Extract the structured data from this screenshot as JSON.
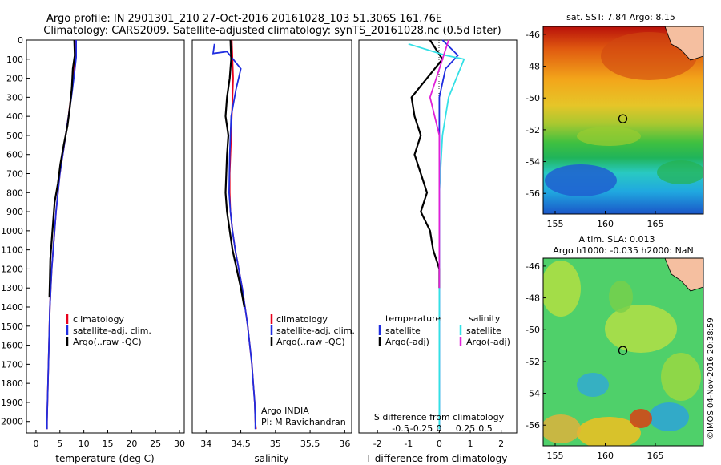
{
  "title_line1": "Argo profile: IN 2901301_210 27-Oct-2016 20161028_103 51.306S 161.76E",
  "title_line2": "Climatology: CARS2009. Satellite-adjusted climatology: synTS_20161028.nc (0.5d later)",
  "credit": "©IMOS 04-Nov-2016 20:38:59",
  "colors": {
    "climatology": "#e8001c",
    "satellite": "#1f2de0",
    "argo": "#000000",
    "sal_sat": "#33e0e6",
    "sal_argo": "#e020d8",
    "land": "#f5bfa0"
  },
  "chart_data": [
    {
      "type": "line",
      "xlabel": "temperature (deg C)",
      "ylabel": "",
      "xlim": [
        -2,
        31
      ],
      "ylim": [
        2060,
        0
      ],
      "x_ticks": [
        0,
        5,
        10,
        15,
        20,
        25,
        30
      ],
      "y_ticks": [
        0,
        100,
        200,
        300,
        400,
        500,
        600,
        700,
        800,
        900,
        1000,
        1100,
        1200,
        1300,
        1400,
        1500,
        1600,
        1700,
        1800,
        1900,
        2000
      ],
      "legend": [
        "climatology",
        "satellite-adj. clim.",
        "Argo(..raw -QC)"
      ],
      "series": [
        {
          "name": "climatology",
          "color": "#e8001c",
          "points": [
            [
              8.3,
              0
            ],
            [
              8.2,
              100
            ],
            [
              7.8,
              200
            ],
            [
              7.3,
              300
            ],
            [
              6.8,
              400
            ],
            [
              6.2,
              500
            ],
            [
              5.6,
              600
            ],
            [
              5.0,
              700
            ],
            [
              4.6,
              800
            ],
            [
              4.2,
              900
            ],
            [
              3.9,
              1000
            ],
            [
              3.6,
              1100
            ],
            [
              3.3,
              1200
            ],
            [
              3.1,
              1300
            ],
            [
              2.9,
              1400
            ],
            [
              2.8,
              1500
            ],
            [
              2.7,
              1600
            ],
            [
              2.6,
              1700
            ],
            [
              2.5,
              1800
            ],
            [
              2.4,
              1900
            ],
            [
              2.3,
              2000
            ],
            [
              2.3,
              2040
            ]
          ]
        },
        {
          "name": "satellite-adj. clim.",
          "color": "#1f2de0",
          "points": [
            [
              8.4,
              0
            ],
            [
              8.4,
              90
            ],
            [
              7.9,
              200
            ],
            [
              7.4,
              300
            ],
            [
              6.8,
              400
            ],
            [
              6.2,
              500
            ],
            [
              5.6,
              600
            ],
            [
              5.0,
              700
            ],
            [
              4.6,
              800
            ],
            [
              4.2,
              900
            ],
            [
              3.9,
              1000
            ],
            [
              3.6,
              1100
            ],
            [
              3.3,
              1200
            ],
            [
              3.1,
              1300
            ],
            [
              2.9,
              1400
            ],
            [
              2.8,
              1500
            ],
            [
              2.7,
              1600
            ],
            [
              2.6,
              1700
            ],
            [
              2.5,
              1800
            ],
            [
              2.4,
              1900
            ],
            [
              2.3,
              2000
            ],
            [
              2.3,
              2040
            ]
          ]
        },
        {
          "name": "Argo(..raw -QC)",
          "color": "#000000",
          "points": [
            [
              8.0,
              0
            ],
            [
              8.1,
              80
            ],
            [
              7.7,
              150
            ],
            [
              7.5,
              250
            ],
            [
              7.1,
              350
            ],
            [
              6.6,
              450
            ],
            [
              5.8,
              550
            ],
            [
              5.1,
              650
            ],
            [
              4.6,
              750
            ],
            [
              3.9,
              850
            ],
            [
              3.6,
              950
            ],
            [
              3.3,
              1050
            ],
            [
              3.0,
              1150
            ],
            [
              2.9,
              1250
            ],
            [
              2.8,
              1350
            ]
          ]
        }
      ]
    },
    {
      "type": "line",
      "xlabel": "salinity",
      "xlim": [
        33.8,
        36.1
      ],
      "ylim": [
        2060,
        0
      ],
      "x_ticks": [
        34,
        34.5,
        35,
        35.5,
        36
      ],
      "legend": [
        "climatology",
        "satellite-adj. clim.",
        "Argo(..raw -QC)"
      ],
      "annotation_line1": "Argo INDIA",
      "annotation_line2": "PI: M Ravichandran",
      "series": [
        {
          "name": "climatology",
          "color": "#e8001c",
          "points": [
            [
              34.37,
              0
            ],
            [
              34.38,
              100
            ],
            [
              34.39,
              200
            ],
            [
              34.38,
              300
            ],
            [
              34.37,
              400
            ],
            [
              34.36,
              500
            ],
            [
              34.35,
              600
            ],
            [
              34.34,
              700
            ],
            [
              34.34,
              800
            ],
            [
              34.35,
              900
            ],
            [
              34.38,
              1000
            ],
            [
              34.42,
              1100
            ],
            [
              34.47,
              1200
            ],
            [
              34.52,
              1300
            ],
            [
              34.56,
              1400
            ],
            [
              34.6,
              1500
            ],
            [
              34.63,
              1600
            ],
            [
              34.66,
              1700
            ],
            [
              34.68,
              1800
            ],
            [
              34.7,
              1900
            ],
            [
              34.71,
              2000
            ],
            [
              34.72,
              2040
            ]
          ]
        },
        {
          "name": "satellite-adj. clim.",
          "color": "#1f2de0",
          "points": [
            [
              34.12,
              20
            ],
            [
              34.1,
              70
            ],
            [
              34.3,
              60
            ],
            [
              34.5,
              150
            ],
            [
              34.43,
              260
            ],
            [
              34.36,
              400
            ],
            [
              34.34,
              600
            ],
            [
              34.33,
              800
            ],
            [
              34.35,
              900
            ],
            [
              34.38,
              1000
            ],
            [
              34.42,
              1100
            ],
            [
              34.47,
              1200
            ],
            [
              34.52,
              1300
            ],
            [
              34.56,
              1400
            ],
            [
              34.6,
              1500
            ],
            [
              34.63,
              1600
            ],
            [
              34.66,
              1700
            ],
            [
              34.68,
              1800
            ],
            [
              34.7,
              1900
            ],
            [
              34.71,
              2000
            ],
            [
              34.71,
              2040
            ]
          ]
        },
        {
          "name": "Argo(..raw -QC)",
          "color": "#000000",
          "points": [
            [
              34.35,
              0
            ],
            [
              34.36,
              100
            ],
            [
              34.34,
              200
            ],
            [
              34.3,
              300
            ],
            [
              34.28,
              400
            ],
            [
              34.32,
              500
            ],
            [
              34.3,
              600
            ],
            [
              34.29,
              700
            ],
            [
              34.28,
              800
            ],
            [
              34.3,
              900
            ],
            [
              34.34,
              1000
            ],
            [
              34.38,
              1100
            ],
            [
              34.44,
              1200
            ],
            [
              34.5,
              1300
            ],
            [
              34.55,
              1400
            ]
          ]
        }
      ]
    },
    {
      "type": "line",
      "xlabel": "T difference from climatology",
      "xlabel_top": "S difference from climatology",
      "xlim": [
        -2.6,
        2.5
      ],
      "ylim": [
        2060,
        0
      ],
      "x_ticks_T": [
        -2,
        -1,
        0,
        1,
        2
      ],
      "x_ticks_S": [
        "-0.5",
        "-0.25",
        "0",
        "0.25",
        "0.5"
      ],
      "legend_left_title": "temperature",
      "legend_right_title": "salinity",
      "legend": [
        "satellite",
        "Argo(-adj)",
        "satellite",
        "Argo(-adj)"
      ],
      "series": [
        {
          "name": "satellite",
          "color": "#1f2de0",
          "points": [
            [
              0.1,
              0
            ],
            [
              0.6,
              80
            ],
            [
              0.2,
              150
            ],
            [
              0.0,
              300
            ],
            [
              0.0,
              2040
            ]
          ]
        },
        {
          "name": "Argo(-adj)",
          "color": "#000000",
          "points": [
            [
              -0.3,
              0
            ],
            [
              0.1,
              100
            ],
            [
              -0.4,
              200
            ],
            [
              -0.9,
              300
            ],
            [
              -0.8,
              400
            ],
            [
              -0.6,
              500
            ],
            [
              -0.8,
              600
            ],
            [
              -0.6,
              700
            ],
            [
              -0.4,
              800
            ],
            [
              -0.6,
              900
            ],
            [
              -0.3,
              1000
            ],
            [
              -0.2,
              1100
            ],
            [
              0.0,
              1200
            ],
            [
              0.0,
              1300
            ]
          ]
        },
        {
          "name": "satellite",
          "color": "#33e0e6",
          "points": [
            [
              -1.0,
              20
            ],
            [
              0.2,
              80
            ],
            [
              0.8,
              100
            ],
            [
              0.6,
              180
            ],
            [
              0.3,
              300
            ],
            [
              0.1,
              500
            ],
            [
              0.0,
              800
            ],
            [
              0.0,
              2040
            ]
          ]
        },
        {
          "name": "Argo(-adj)",
          "color": "#e020d8",
          "points": [
            [
              0.3,
              0
            ],
            [
              0.1,
              100
            ],
            [
              -0.1,
              200
            ],
            [
              -0.3,
              300
            ],
            [
              0.0,
              500
            ],
            [
              0.0,
              700
            ],
            [
              0.0,
              900
            ],
            [
              0.0,
              1100
            ],
            [
              0.0,
              1300
            ]
          ]
        }
      ]
    }
  ],
  "maps": [
    {
      "title": "sat. SST: 7.84  Argo: 8.15",
      "x_ticks": [
        155,
        160,
        165
      ],
      "y_ticks": [
        -46,
        -48,
        -50,
        -52,
        -54,
        -56
      ],
      "lonlim": [
        153.8,
        169.8
      ],
      "latlim": [
        -57.3,
        -45.5
      ]
    },
    {
      "title_line1": "Altim. SLA: 0.013",
      "title_line2": "Argo h1000: -0.035  h2000: NaN",
      "x_ticks": [
        155,
        160,
        165
      ],
      "y_ticks": [
        -46,
        -48,
        -50,
        -52,
        -54,
        -56
      ],
      "lonlim": [
        153.8,
        169.8
      ],
      "latlim": [
        -57.3,
        -45.5
      ]
    }
  ],
  "argo_position": {
    "lon": 161.76,
    "lat": -51.306
  }
}
